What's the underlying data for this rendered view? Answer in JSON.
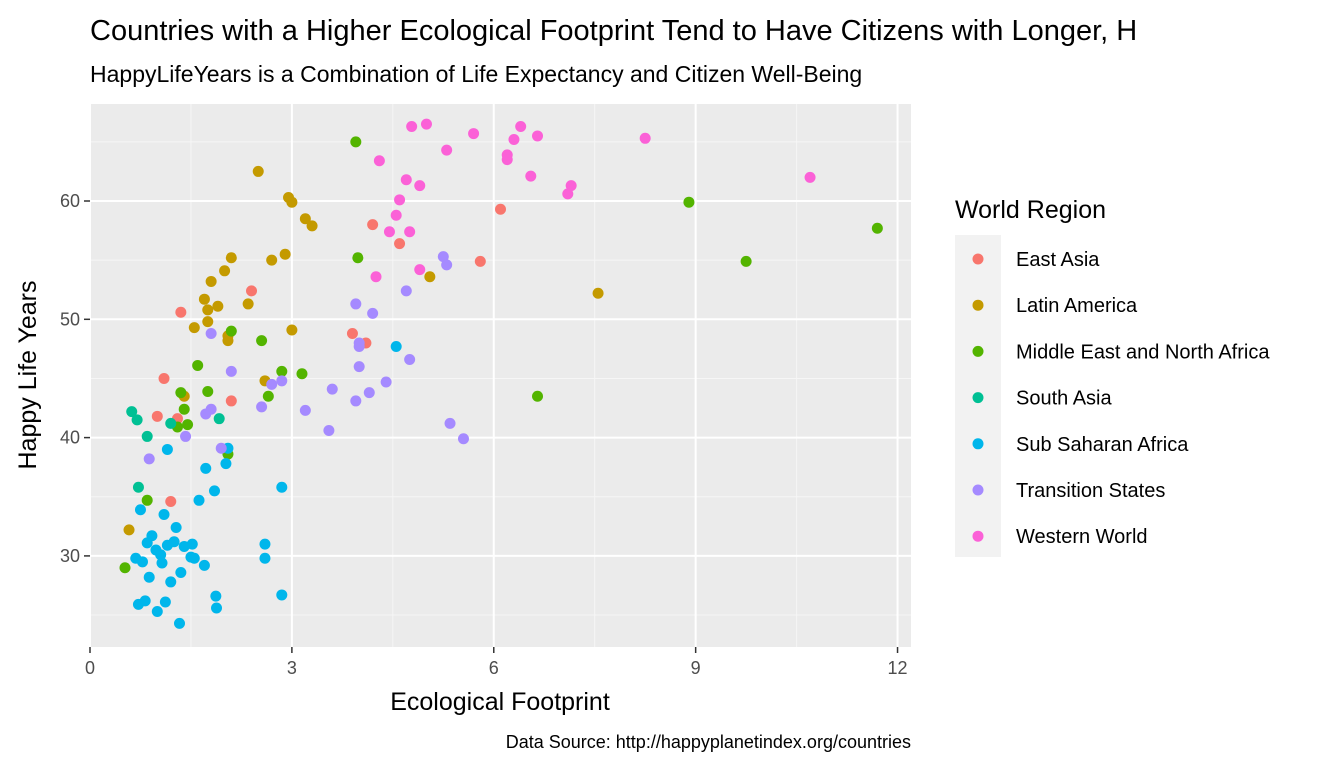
{
  "chart_data": {
    "type": "scatter",
    "title": "Countries with a Higher Ecological Footprint Tend to Have Citizens with Longer, H",
    "subtitle": "HappyLifeYears is a Combination of Life Expectancy and Citizen Well-Being",
    "xlabel": "Ecological Footprint",
    "ylabel": "Happy Life Years",
    "caption": "Data Source: http://happyplanetindex.org/countries",
    "xlim": [
      0,
      12.2
    ],
    "ylim": [
      22.3,
      68.2
    ],
    "x_ticks": [
      0,
      3,
      6,
      9,
      12
    ],
    "y_ticks": [
      30,
      40,
      50,
      60
    ],
    "grid": true,
    "legend": {
      "title": "World Region",
      "position": "right"
    },
    "series": [
      {
        "name": "East Asia",
        "color": "#F8766D",
        "points": [
          [
            1.1,
            45.0
          ],
          [
            1.2,
            34.6
          ],
          [
            1.35,
            50.6
          ],
          [
            1.0,
            41.8
          ],
          [
            1.3,
            41.6
          ],
          [
            2.1,
            43.1
          ],
          [
            2.4,
            52.4
          ],
          [
            3.9,
            48.8
          ],
          [
            4.1,
            48.0
          ],
          [
            4.2,
            58.0
          ],
          [
            4.6,
            56.4
          ],
          [
            5.8,
            54.9
          ],
          [
            6.1,
            59.3
          ]
        ]
      },
      {
        "name": "Latin America",
        "color": "#C49A00",
        "points": [
          [
            0.58,
            32.2
          ],
          [
            1.4,
            43.5
          ],
          [
            1.55,
            49.3
          ],
          [
            1.7,
            51.7
          ],
          [
            1.75,
            50.8
          ],
          [
            1.8,
            53.2
          ],
          [
            1.9,
            51.1
          ],
          [
            1.75,
            49.8
          ],
          [
            2.0,
            54.1
          ],
          [
            2.05,
            48.6
          ],
          [
            2.05,
            48.2
          ],
          [
            2.1,
            55.2
          ],
          [
            2.35,
            51.3
          ],
          [
            2.5,
            62.5
          ],
          [
            2.6,
            44.8
          ],
          [
            2.7,
            55.0
          ],
          [
            2.9,
            55.5
          ],
          [
            2.95,
            60.3
          ],
          [
            3.0,
            59.9
          ],
          [
            3.0,
            49.1
          ],
          [
            3.2,
            58.5
          ],
          [
            3.3,
            57.9
          ],
          [
            5.05,
            53.6
          ],
          [
            7.55,
            52.2
          ]
        ]
      },
      {
        "name": "Middle East and North Africa",
        "color": "#53B400",
        "points": [
          [
            0.52,
            29.0
          ],
          [
            0.85,
            34.7
          ],
          [
            1.35,
            43.8
          ],
          [
            1.4,
            42.4
          ],
          [
            1.45,
            41.1
          ],
          [
            1.3,
            40.9
          ],
          [
            1.6,
            46.1
          ],
          [
            1.75,
            43.9
          ],
          [
            2.05,
            38.6
          ],
          [
            2.1,
            49.0
          ],
          [
            2.55,
            48.2
          ],
          [
            2.65,
            43.5
          ],
          [
            2.85,
            45.6
          ],
          [
            3.15,
            45.4
          ],
          [
            3.95,
            65.0
          ],
          [
            3.98,
            55.2
          ],
          [
            6.65,
            43.5
          ],
          [
            8.9,
            59.9
          ],
          [
            9.75,
            54.9
          ],
          [
            11.7,
            57.7
          ]
        ]
      },
      {
        "name": "South Asia",
        "color": "#00C094",
        "points": [
          [
            0.62,
            42.2
          ],
          [
            0.7,
            41.5
          ],
          [
            0.72,
            35.8
          ],
          [
            0.85,
            40.1
          ],
          [
            1.2,
            41.2
          ],
          [
            1.92,
            41.6
          ]
        ]
      },
      {
        "name": "Sub Saharan Africa",
        "color": "#00B6EB",
        "points": [
          [
            0.68,
            29.8
          ],
          [
            0.72,
            25.9
          ],
          [
            0.75,
            33.9
          ],
          [
            0.78,
            29.5
          ],
          [
            0.82,
            26.2
          ],
          [
            0.85,
            31.1
          ],
          [
            0.88,
            28.2
          ],
          [
            0.92,
            31.7
          ],
          [
            0.98,
            30.5
          ],
          [
            1.0,
            25.3
          ],
          [
            1.05,
            30.1
          ],
          [
            1.07,
            29.4
          ],
          [
            1.1,
            33.5
          ],
          [
            1.12,
            26.1
          ],
          [
            1.15,
            30.9
          ],
          [
            1.15,
            39.0
          ],
          [
            1.2,
            27.8
          ],
          [
            1.25,
            31.2
          ],
          [
            1.28,
            32.4
          ],
          [
            1.33,
            24.3
          ],
          [
            1.35,
            28.6
          ],
          [
            1.4,
            30.8
          ],
          [
            1.5,
            29.9
          ],
          [
            1.52,
            31.0
          ],
          [
            1.55,
            29.8
          ],
          [
            1.62,
            34.7
          ],
          [
            1.7,
            29.2
          ],
          [
            1.72,
            37.4
          ],
          [
            1.85,
            35.5
          ],
          [
            1.87,
            26.6
          ],
          [
            1.88,
            25.6
          ],
          [
            2.02,
            37.8
          ],
          [
            2.05,
            39.1
          ],
          [
            2.6,
            29.8
          ],
          [
            2.6,
            31.0
          ],
          [
            2.85,
            35.8
          ],
          [
            2.85,
            26.7
          ],
          [
            4.55,
            47.7
          ]
        ]
      },
      {
        "name": "Transition States",
        "color": "#A58AFF",
        "points": [
          [
            0.88,
            38.2
          ],
          [
            1.42,
            40.1
          ],
          [
            1.72,
            42.0
          ],
          [
            1.8,
            48.8
          ],
          [
            1.8,
            42.4
          ],
          [
            1.95,
            39.1
          ],
          [
            2.1,
            45.6
          ],
          [
            2.55,
            42.6
          ],
          [
            2.7,
            44.5
          ],
          [
            2.85,
            44.8
          ],
          [
            3.2,
            42.3
          ],
          [
            3.55,
            40.6
          ],
          [
            3.6,
            44.1
          ],
          [
            3.95,
            51.3
          ],
          [
            3.95,
            43.1
          ],
          [
            4.0,
            47.7
          ],
          [
            4.0,
            48.0
          ],
          [
            4.0,
            46.0
          ],
          [
            4.15,
            43.8
          ],
          [
            4.2,
            50.5
          ],
          [
            4.4,
            44.7
          ],
          [
            4.7,
            52.4
          ],
          [
            4.75,
            46.6
          ],
          [
            5.25,
            55.3
          ],
          [
            5.3,
            54.6
          ],
          [
            5.35,
            41.2
          ],
          [
            5.55,
            39.9
          ]
        ]
      },
      {
        "name": "Western World",
        "color": "#FB61D7",
        "points": [
          [
            4.25,
            53.6
          ],
          [
            4.3,
            63.4
          ],
          [
            4.45,
            57.4
          ],
          [
            4.55,
            58.8
          ],
          [
            4.6,
            60.1
          ],
          [
            4.7,
            61.8
          ],
          [
            4.75,
            57.4
          ],
          [
            4.78,
            66.3
          ],
          [
            4.9,
            61.3
          ],
          [
            4.9,
            54.2
          ],
          [
            5.0,
            66.5
          ],
          [
            5.3,
            64.3
          ],
          [
            5.7,
            65.7
          ],
          [
            6.2,
            63.9
          ],
          [
            6.2,
            63.5
          ],
          [
            6.3,
            65.2
          ],
          [
            6.4,
            66.3
          ],
          [
            6.55,
            62.1
          ],
          [
            6.65,
            65.5
          ],
          [
            7.1,
            60.6
          ],
          [
            7.15,
            61.3
          ],
          [
            8.25,
            65.3
          ],
          [
            10.7,
            62.0
          ]
        ]
      }
    ]
  }
}
